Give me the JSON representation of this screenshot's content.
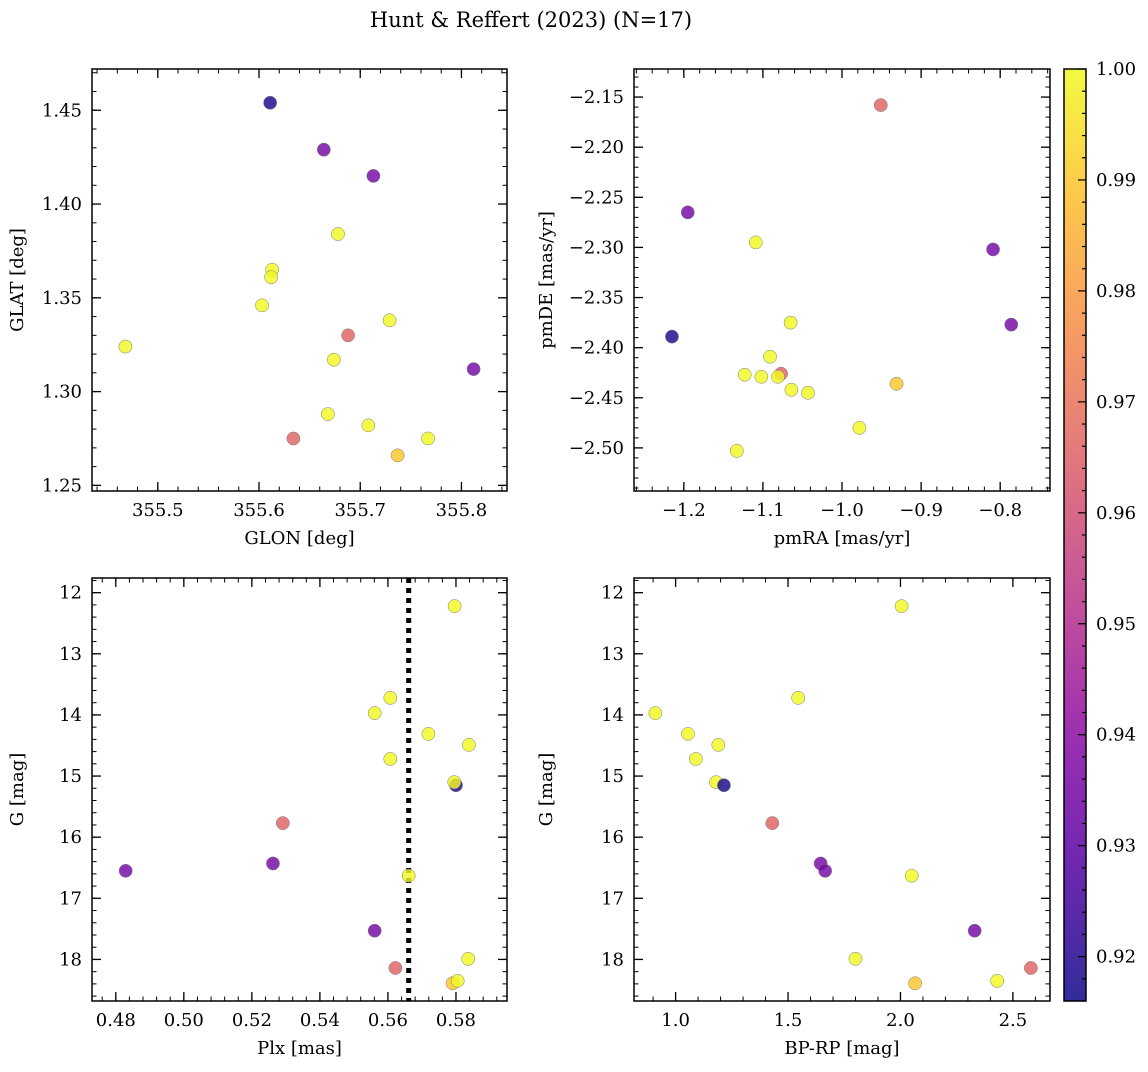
{
  "figure_title": "Hunt & Reffert (2023) (N=17)",
  "colorbar": {
    "range": [
      0.916,
      1.0
    ],
    "ticks": [
      "0.92",
      "0.93",
      "0.94",
      "0.95",
      "0.96",
      "0.97",
      "0.98",
      "0.99",
      "1.00"
    ],
    "tick_values": [
      0.92,
      0.93,
      0.94,
      0.95,
      0.96,
      0.97,
      0.98,
      0.99,
      1.0
    ],
    "colormap": "plasma"
  },
  "chart_data": [
    {
      "type": "scatter",
      "panel": "top-left",
      "xlabel": "GLON [deg]",
      "ylabel": "GLAT [deg]",
      "xlim": [
        355.435,
        355.845
      ],
      "ylim": [
        1.247,
        1.472
      ],
      "xticks": [
        "355.5",
        "355.6",
        "355.7",
        "355.8"
      ],
      "xtick_values": [
        355.5,
        355.6,
        355.7,
        355.8
      ],
      "yticks": [
        "1.25",
        "1.30",
        "1.35",
        "1.40",
        "1.45"
      ],
      "ytick_values": [
        1.25,
        1.3,
        1.35,
        1.4,
        1.45
      ],
      "points": [
        {
          "x": 355.611,
          "y": 1.454,
          "c": 0.918
        },
        {
          "x": 355.664,
          "y": 1.429,
          "c": 0.935
        },
        {
          "x": 355.713,
          "y": 1.415,
          "c": 0.935
        },
        {
          "x": 355.678,
          "y": 1.384,
          "c": 1.0
        },
        {
          "x": 355.613,
          "y": 1.365,
          "c": 1.0
        },
        {
          "x": 355.612,
          "y": 1.361,
          "c": 1.0
        },
        {
          "x": 355.603,
          "y": 1.346,
          "c": 1.0
        },
        {
          "x": 355.729,
          "y": 1.338,
          "c": 1.0
        },
        {
          "x": 355.688,
          "y": 1.33,
          "c": 0.966
        },
        {
          "x": 355.468,
          "y": 1.324,
          "c": 1.0
        },
        {
          "x": 355.674,
          "y": 1.317,
          "c": 1.0
        },
        {
          "x": 355.812,
          "y": 1.312,
          "c": 0.935
        },
        {
          "x": 355.668,
          "y": 1.288,
          "c": 1.0
        },
        {
          "x": 355.708,
          "y": 1.282,
          "c": 1.0
        },
        {
          "x": 355.767,
          "y": 1.275,
          "c": 1.0
        },
        {
          "x": 355.634,
          "y": 1.275,
          "c": 0.966
        },
        {
          "x": 355.737,
          "y": 1.266,
          "c": 0.99
        }
      ]
    },
    {
      "type": "scatter",
      "panel": "top-right",
      "xlabel": "pmRA [mas/yr]",
      "ylabel": "pmDE [mas/yr]",
      "xlim": [
        -1.263,
        -0.737
      ],
      "ylim": [
        -2.543,
        -2.122
      ],
      "xticks": [
        "−1.2",
        "−1.1",
        "−1.0",
        "−0.9",
        "−0.8"
      ],
      "xtick_values": [
        -1.2,
        -1.1,
        -1.0,
        -0.9,
        -0.8
      ],
      "yticks": [
        "−2.50",
        "−2.45",
        "−2.40",
        "−2.35",
        "−2.30",
        "−2.25",
        "−2.20",
        "−2.15"
      ],
      "ytick_values": [
        -2.5,
        -2.45,
        -2.4,
        -2.35,
        -2.3,
        -2.25,
        -2.2,
        -2.15
      ],
      "points": [
        {
          "x": -0.951,
          "y": -2.158,
          "c": 0.966
        },
        {
          "x": -1.195,
          "y": -2.265,
          "c": 0.935
        },
        {
          "x": -1.109,
          "y": -2.295,
          "c": 1.0
        },
        {
          "x": -0.809,
          "y": -2.302,
          "c": 0.935
        },
        {
          "x": -1.065,
          "y": -2.375,
          "c": 1.0
        },
        {
          "x": -0.786,
          "y": -2.377,
          "c": 0.935
        },
        {
          "x": -1.215,
          "y": -2.389,
          "c": 0.918
        },
        {
          "x": -1.091,
          "y": -2.409,
          "c": 1.0
        },
        {
          "x": -1.077,
          "y": -2.426,
          "c": 0.966
        },
        {
          "x": -1.123,
          "y": -2.427,
          "c": 1.0
        },
        {
          "x": -1.102,
          "y": -2.429,
          "c": 1.0
        },
        {
          "x": -1.081,
          "y": -2.429,
          "c": 1.0
        },
        {
          "x": -0.931,
          "y": -2.436,
          "c": 0.99
        },
        {
          "x": -1.064,
          "y": -2.442,
          "c": 1.0
        },
        {
          "x": -1.043,
          "y": -2.445,
          "c": 1.0
        },
        {
          "x": -0.978,
          "y": -2.48,
          "c": 1.0
        },
        {
          "x": -1.133,
          "y": -2.503,
          "c": 1.0
        }
      ]
    },
    {
      "type": "scatter",
      "panel": "bottom-left",
      "xlabel": "Plx [mas]",
      "ylabel": "G [mag]",
      "xlim": [
        0.473,
        0.595
      ],
      "ylim": [
        18.68,
        11.76
      ],
      "y_inverted": true,
      "xticks": [
        "0.48",
        "0.50",
        "0.52",
        "0.54",
        "0.56",
        "0.58"
      ],
      "xtick_values": [
        0.48,
        0.5,
        0.52,
        0.54,
        0.56,
        0.58
      ],
      "yticks": [
        "12",
        "13",
        "14",
        "15",
        "16",
        "17",
        "18"
      ],
      "ytick_values": [
        12,
        13,
        14,
        15,
        16,
        17,
        18
      ],
      "vline": {
        "x": 0.5661,
        "style": "dotted"
      },
      "points": [
        {
          "x": 0.5796,
          "y": 12.22,
          "c": 1.0
        },
        {
          "x": 0.5607,
          "y": 13.72,
          "c": 1.0
        },
        {
          "x": 0.5561,
          "y": 13.97,
          "c": 1.0
        },
        {
          "x": 0.5719,
          "y": 14.31,
          "c": 1.0
        },
        {
          "x": 0.5838,
          "y": 14.49,
          "c": 1.0
        },
        {
          "x": 0.5607,
          "y": 14.72,
          "c": 1.0
        },
        {
          "x": 0.58,
          "y": 15.15,
          "c": 0.918
        },
        {
          "x": 0.5795,
          "y": 15.1,
          "c": 1.0
        },
        {
          "x": 0.5291,
          "y": 15.77,
          "c": 0.966
        },
        {
          "x": 0.5262,
          "y": 16.43,
          "c": 0.935
        },
        {
          "x": 0.4829,
          "y": 16.55,
          "c": 0.935
        },
        {
          "x": 0.5661,
          "y": 16.63,
          "c": 1.0
        },
        {
          "x": 0.5561,
          "y": 17.53,
          "c": 0.935
        },
        {
          "x": 0.5836,
          "y": 17.99,
          "c": 1.0
        },
        {
          "x": 0.5622,
          "y": 18.14,
          "c": 0.966
        },
        {
          "x": 0.579,
          "y": 18.39,
          "c": 0.99
        },
        {
          "x": 0.5805,
          "y": 18.35,
          "c": 1.0
        }
      ]
    },
    {
      "type": "scatter",
      "panel": "bottom-right",
      "xlabel": "BP-RP [mag]",
      "ylabel": "G [mag]",
      "xlim": [
        0.815,
        2.665
      ],
      "ylim": [
        18.68,
        11.76
      ],
      "y_inverted": true,
      "xticks": [
        "1.0",
        "1.5",
        "2.0",
        "2.5"
      ],
      "xtick_values": [
        1.0,
        1.5,
        2.0,
        2.5
      ],
      "yticks": [
        "12",
        "13",
        "14",
        "15",
        "16",
        "17",
        "18"
      ],
      "ytick_values": [
        12,
        13,
        14,
        15,
        16,
        17,
        18
      ],
      "points": [
        {
          "x": 2.005,
          "y": 12.22,
          "c": 1.0
        },
        {
          "x": 1.545,
          "y": 13.72,
          "c": 1.0
        },
        {
          "x": 0.91,
          "y": 13.97,
          "c": 1.0
        },
        {
          "x": 1.055,
          "y": 14.31,
          "c": 1.0
        },
        {
          "x": 1.19,
          "y": 14.49,
          "c": 1.0
        },
        {
          "x": 1.09,
          "y": 14.72,
          "c": 1.0
        },
        {
          "x": 1.18,
          "y": 15.1,
          "c": 1.0
        },
        {
          "x": 1.215,
          "y": 15.15,
          "c": 0.918
        },
        {
          "x": 1.43,
          "y": 15.77,
          "c": 0.966
        },
        {
          "x": 1.645,
          "y": 16.43,
          "c": 0.935
        },
        {
          "x": 1.665,
          "y": 16.55,
          "c": 0.935
        },
        {
          "x": 2.05,
          "y": 16.63,
          "c": 1.0
        },
        {
          "x": 2.33,
          "y": 17.53,
          "c": 0.935
        },
        {
          "x": 1.8,
          "y": 17.99,
          "c": 1.0
        },
        {
          "x": 2.58,
          "y": 18.14,
          "c": 0.966
        },
        {
          "x": 2.065,
          "y": 18.39,
          "c": 0.99
        },
        {
          "x": 2.43,
          "y": 18.35,
          "c": 1.0
        }
      ]
    }
  ]
}
